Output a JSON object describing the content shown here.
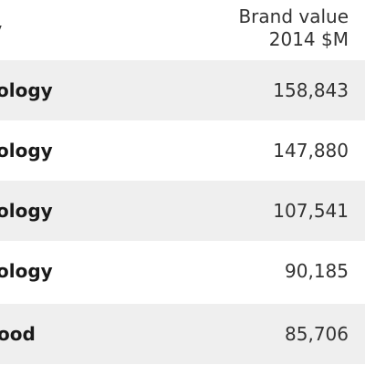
{
  "table": {
    "headers": {
      "category": "ory",
      "value_line1": "Brand value",
      "value_line2": "2014 $M"
    },
    "rows": [
      {
        "category": "ology",
        "value": "158,843"
      },
      {
        "category": "ology",
        "value": "147,880"
      },
      {
        "category": "ology",
        "value": "107,541"
      },
      {
        "category": "ology",
        "value": "90,185"
      },
      {
        "category": "ood",
        "value": "85,706"
      }
    ]
  }
}
